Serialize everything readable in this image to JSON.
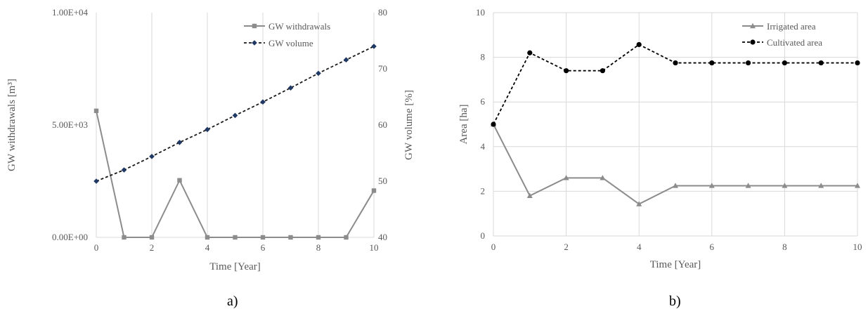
{
  "panel_labels": {
    "a": "a)",
    "b": "b)"
  },
  "colors": {
    "grid": "#d9d9d9",
    "axis_text": "#595959",
    "gw_withdrawals": "#8c8c8c",
    "gw_volume_line": "#1a1a1a",
    "gw_volume_marker": "#1f3864",
    "irrigated": "#8c8c8c",
    "cultivated": "#000000"
  },
  "chart_data": [
    {
      "id": "a",
      "type": "line",
      "xlabel": "Time [Year]",
      "ylabel": "GW withdrawals [m³]",
      "y2label": "GW volume [%]",
      "xlim": [
        0,
        10
      ],
      "xticks": [
        "0",
        "2",
        "4",
        "6",
        "8",
        "10"
      ],
      "ylim": [
        0,
        10000
      ],
      "yticks": [
        "0.00E+00",
        "5.00E+03",
        "1.00E+04"
      ],
      "y2lim": [
        40,
        80
      ],
      "y2ticks": [
        "40",
        "50",
        "60",
        "70",
        "80"
      ],
      "grid": "vertical",
      "legend_position": "top-right",
      "x": [
        0,
        1,
        2,
        3,
        4,
        5,
        6,
        7,
        8,
        9,
        10
      ],
      "series": [
        {
          "name": "GW withdrawals",
          "axis": "left",
          "marker": "square",
          "dashed": false,
          "values": [
            5630,
            0,
            0,
            2540,
            0,
            0,
            0,
            0,
            0,
            0,
            2080
          ]
        },
        {
          "name": "GW volume",
          "axis": "right",
          "marker": "diamond",
          "dashed": true,
          "values": [
            50,
            52,
            54.4,
            56.9,
            59.2,
            61.7,
            64.1,
            66.6,
            69.2,
            71.6,
            74
          ]
        }
      ]
    },
    {
      "id": "b",
      "type": "line",
      "xlabel": "Time [Year]",
      "ylabel": "Area [ha]",
      "xlim": [
        0,
        10
      ],
      "xticks": [
        "0",
        "2",
        "4",
        "6",
        "8",
        "10"
      ],
      "ylim": [
        0,
        10
      ],
      "yticks": [
        "0",
        "2",
        "4",
        "6",
        "8",
        "10"
      ],
      "grid": "both",
      "legend_position": "top-right",
      "x": [
        0,
        1,
        2,
        3,
        4,
        5,
        6,
        7,
        8,
        9,
        10
      ],
      "series": [
        {
          "name": "Irrigated area",
          "marker": "triangle",
          "dashed": false,
          "values": [
            5,
            1.8,
            2.6,
            2.6,
            1.43,
            2.25,
            2.25,
            2.25,
            2.25,
            2.25,
            2.25
          ]
        },
        {
          "name": "Cultivated area",
          "marker": "circle",
          "dashed": true,
          "values": [
            5,
            8.2,
            7.4,
            7.4,
            8.57,
            7.75,
            7.75,
            7.75,
            7.75,
            7.75,
            7.75
          ]
        }
      ]
    }
  ]
}
